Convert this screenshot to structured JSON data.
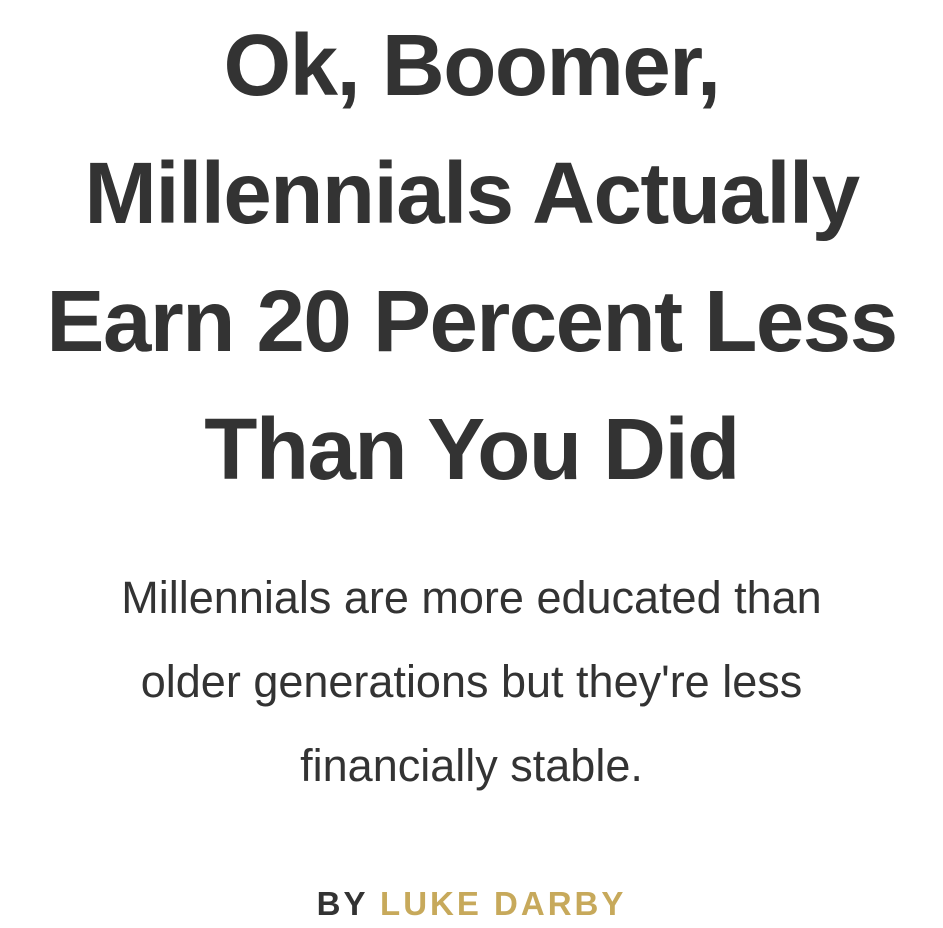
{
  "article": {
    "headline_lines": [
      "Ok, Boomer,",
      "Millennials Actually",
      "Earn 20 Percent Less",
      "Than You Did"
    ],
    "dek_lines": [
      "Millennials are more educated than",
      "older generations but they're less",
      "financially stable."
    ],
    "byline": {
      "prefix": "BY",
      "author": "LUKE DARBY"
    }
  },
  "colors": {
    "text": "#333333",
    "author_accent": "#c7a95b",
    "background": "#ffffff"
  }
}
